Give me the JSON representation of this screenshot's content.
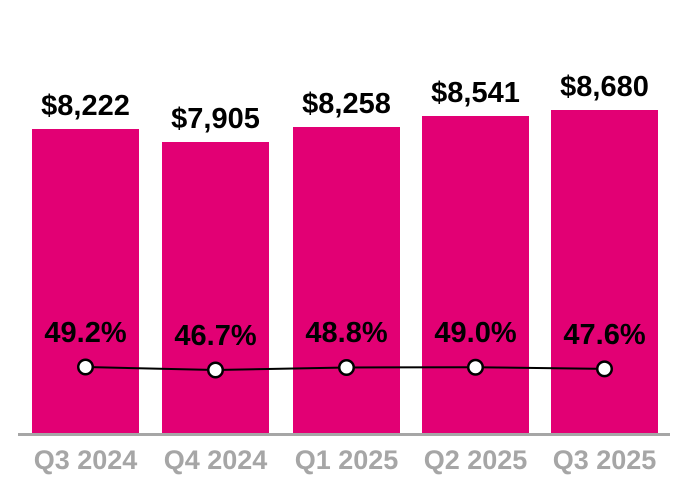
{
  "chart_data": {
    "type": "bar",
    "subtype": "bar-with-line-overlay",
    "categories": [
      "Q3 2024",
      "Q4 2024",
      "Q1 2025",
      "Q2 2025",
      "Q3 2025"
    ],
    "series": [
      {
        "name": "bar-series",
        "type": "bar",
        "values": [
          8222,
          7905,
          8258,
          8541,
          8680
        ],
        "labels": [
          "$8,222",
          "$7,905",
          "$8,258",
          "$8,541",
          "$8,680"
        ]
      },
      {
        "name": "line-series",
        "type": "line",
        "values": [
          49.2,
          46.7,
          48.8,
          49.0,
          47.6
        ],
        "labels": [
          "49.2%",
          "46.7%",
          "48.8%",
          "49.0%",
          "47.6%"
        ]
      }
    ],
    "title": "",
    "xlabel": "",
    "ylabel": "",
    "value_axis": "hidden",
    "grid": "off",
    "legend_position": "none",
    "colors": {
      "bar": "#E20074",
      "line": "#000000",
      "marker_fill": "#FFFFFF",
      "marker_stroke": "#000000",
      "data_label": "#000000",
      "axis_label": "#A6A6A6",
      "axis_line": "#A6A6A6",
      "background": "#FFFFFF"
    }
  }
}
